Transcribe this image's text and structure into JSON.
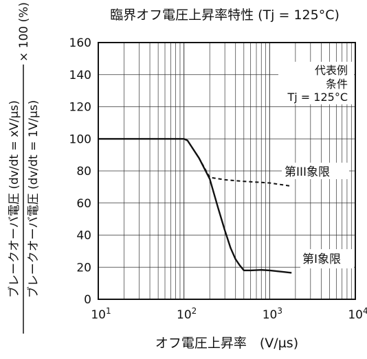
{
  "chart_data": {
    "type": "line",
    "title": "臨界オフ電圧上昇率特性 (Tj = 125°C)",
    "xlabel": "オフ電圧上昇率　(V/µs)",
    "ylabel_numerator": "ブレークオーバ電圧 (dv/dt = xV/µs)",
    "ylabel_denominator": "ブレークオーバ電圧 (dv/dt = 1V/µs)",
    "ylabel_suffix": "× 100 (%)",
    "x_scale": "log",
    "xlim": [
      10,
      10000
    ],
    "ylim": [
      0,
      160
    ],
    "grid": true,
    "x_ticks": [
      {
        "value": 10,
        "base": "10",
        "exp": "1"
      },
      {
        "value": 100,
        "base": "10",
        "exp": "2"
      },
      {
        "value": 1000,
        "base": "10",
        "exp": "3"
      },
      {
        "value": 10000,
        "base": "10",
        "exp": "4"
      }
    ],
    "y_ticks": [
      0,
      20,
      40,
      60,
      80,
      100,
      120,
      140,
      160
    ],
    "series": [
      {
        "name": "第I象限",
        "style": "solid",
        "x": [
          10,
          100,
          110,
          150,
          200,
          250,
          300,
          350,
          400,
          450,
          500,
          600,
          800,
          1000,
          1500,
          1800
        ],
        "y": [
          100,
          100,
          99,
          88,
          75,
          57,
          43,
          32,
          25,
          21,
          18,
          18,
          18.3,
          18,
          17,
          16.5
        ]
      },
      {
        "name": "第III象限",
        "style": "dashed",
        "x": [
          100,
          110,
          150,
          200,
          300,
          500,
          1000,
          1800
        ],
        "y": [
          100,
          99,
          88,
          76,
          74.5,
          73.5,
          72.5,
          70.5
        ]
      }
    ],
    "annotations": {
      "box_lines": [
        "代表例",
        "条件",
        "Tj = 125°C"
      ],
      "label_q3": "第III象限",
      "label_q1": "第I象限"
    }
  }
}
